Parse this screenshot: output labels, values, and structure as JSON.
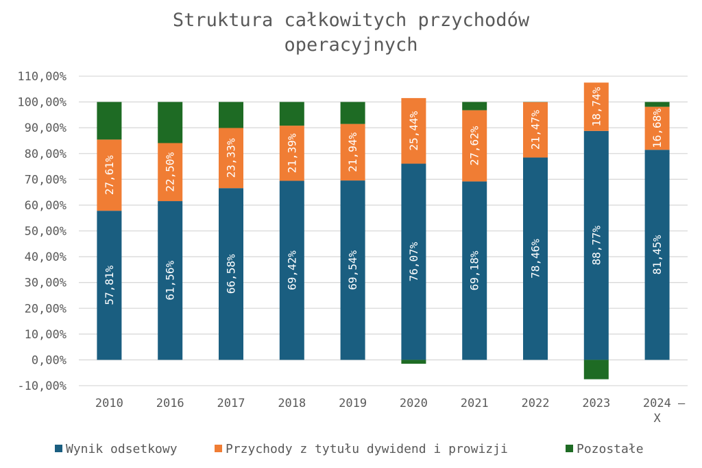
{
  "chart_data": {
    "type": "bar",
    "stacked": true,
    "title": [
      "Struktura całkowitych przychodów",
      "operacyjnych"
    ],
    "categories": [
      "2010",
      "2016",
      "2017",
      "2018",
      "2019",
      "2020",
      "2021",
      "2022",
      "2023",
      [
        "2024 –",
        "X"
      ]
    ],
    "series": [
      {
        "name": "Wynik odsetkowy",
        "color": "#1a5e80",
        "values": [
          57.81,
          61.56,
          66.58,
          69.42,
          69.54,
          76.07,
          69.18,
          78.46,
          88.77,
          81.45
        ],
        "labels": [
          "57,81%",
          "61,56%",
          "66,58%",
          "69,42%",
          "69,54%",
          "76,07%",
          "69,18%",
          "78,46%",
          "88,77%",
          "81,45%"
        ]
      },
      {
        "name": "Przychody z tytułu dywidend i prowizji",
        "color": "#f07d34",
        "values": [
          27.61,
          22.5,
          23.33,
          21.39,
          21.94,
          25.44,
          27.62,
          21.47,
          18.74,
          16.68
        ],
        "labels": [
          "27,61%",
          "22,50%",
          "23,33%",
          "21,39%",
          "21,94%",
          "25,44%",
          "27,62%",
          "21,47%",
          "18,74%",
          "16,68%"
        ]
      },
      {
        "name": "Pozostałe",
        "color": "#1e6b24",
        "values": [
          14.58,
          15.94,
          10.09,
          9.19,
          8.52,
          -1.51,
          3.2,
          0.07,
          -7.51,
          1.87
        ]
      }
    ],
    "ylim": [
      -10,
      110
    ],
    "yticks": [
      -10,
      0,
      10,
      20,
      30,
      40,
      50,
      60,
      70,
      80,
      90,
      100,
      110
    ],
    "ytick_labels": [
      "-10,00%",
      "0,00%",
      "10,00%",
      "20,00%",
      "30,00%",
      "40,00%",
      "50,00%",
      "60,00%",
      "70,00%",
      "80,00%",
      "90,00%",
      "100,00%",
      "110,00%"
    ],
    "grid": true,
    "legend_position": "bottom"
  }
}
